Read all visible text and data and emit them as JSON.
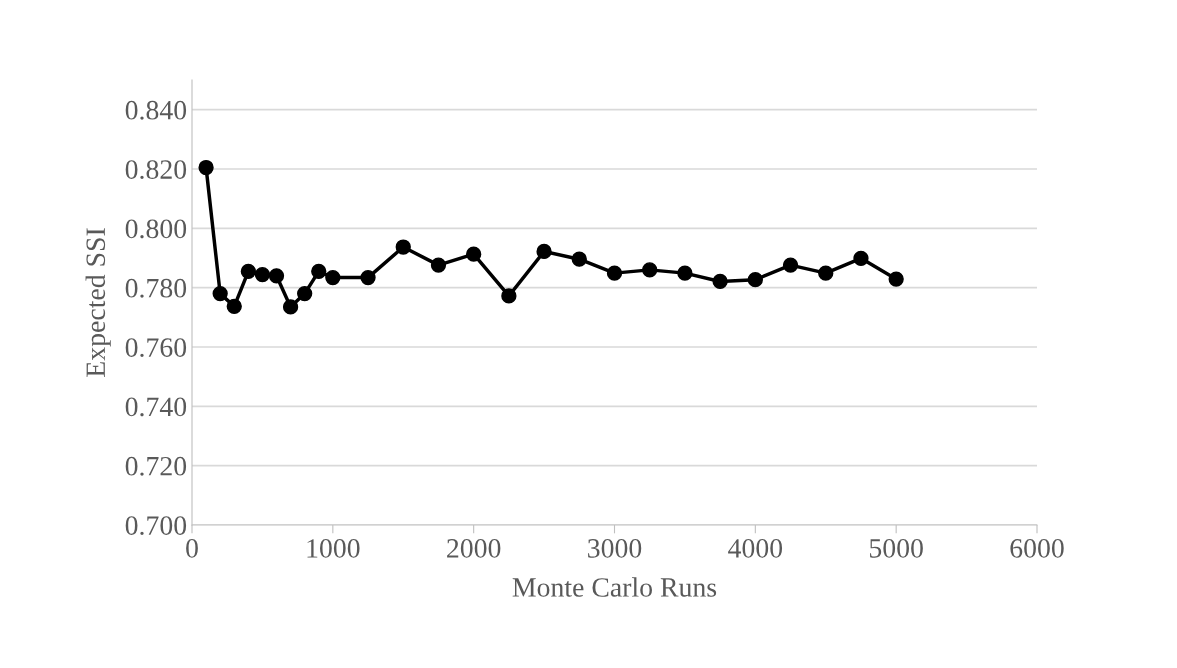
{
  "chart_data": {
    "type": "line",
    "xlabel": "Monte Carlo Runs",
    "ylabel": "Expected SSI",
    "x": [
      100,
      200,
      300,
      400,
      500,
      600,
      700,
      800,
      900,
      1000,
      1250,
      1500,
      1750,
      2000,
      2250,
      2500,
      2750,
      3000,
      3250,
      3500,
      3750,
      4000,
      4250,
      4500,
      4750,
      5000
    ],
    "series": [
      {
        "color": "#000000",
        "values": [
          0.8205,
          0.778,
          0.7737,
          0.7855,
          0.7844,
          0.784,
          0.7735,
          0.778,
          0.7855,
          0.7834,
          0.7834,
          0.7937,
          0.7876,
          0.7913,
          0.7772,
          0.7922,
          0.7896,
          0.7849,
          0.786,
          0.7849,
          0.7821,
          0.7827,
          0.7876,
          0.7849,
          0.7899,
          0.7829
        ]
      }
    ],
    "xlim": [
      0,
      6000
    ],
    "xticks": [
      0,
      1000,
      2000,
      3000,
      4000,
      5000,
      6000
    ],
    "ylim": [
      0.7,
      0.85
    ],
    "yticks": [
      {
        "value": 0.7,
        "label": "0.700"
      },
      {
        "value": 0.72,
        "label": "0.720"
      },
      {
        "value": 0.74,
        "label": "0.740"
      },
      {
        "value": 0.76,
        "label": "0.760"
      },
      {
        "value": 0.78,
        "label": "0.780"
      },
      {
        "value": 0.8,
        "label": "0.800"
      },
      {
        "value": 0.82,
        "label": "0.820"
      },
      {
        "value": 0.84,
        "label": "0.840"
      }
    ],
    "grid": "y",
    "marker": "circle",
    "line_style": "solid"
  }
}
